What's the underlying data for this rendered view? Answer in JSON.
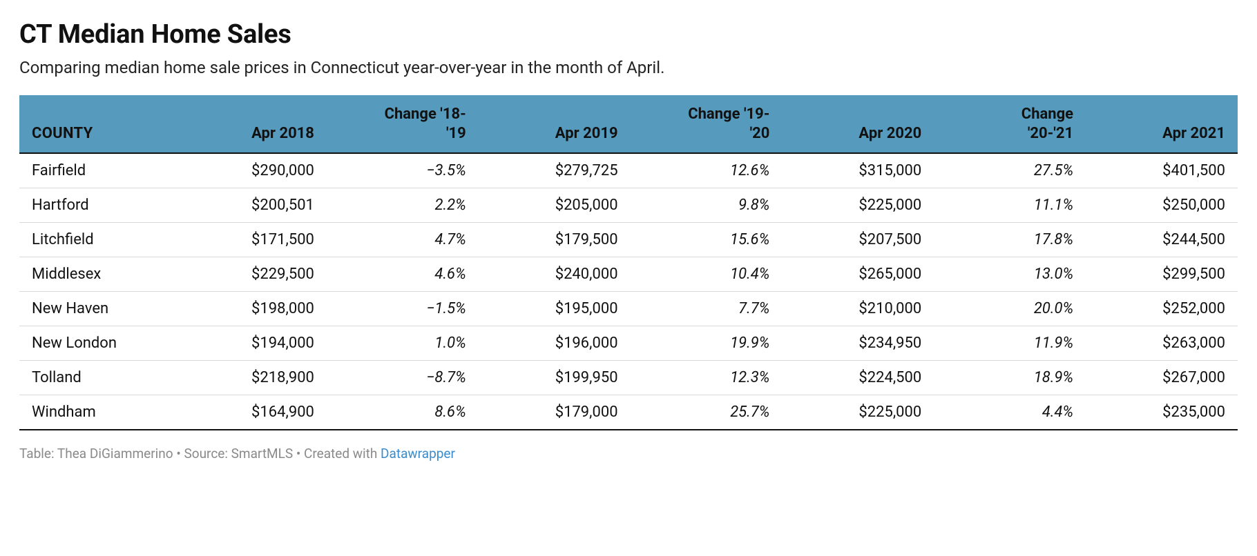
{
  "title": "CT Median Home Sales",
  "subtitle": "Comparing median home sale prices in Connecticut year-over-year in the month of April.",
  "colors": {
    "header_bg": "#569bbe",
    "text": "#111111",
    "row_border": "#d9d9d9",
    "bottom_border": "#111111",
    "footer_text": "#8a8a8a",
    "link": "#3b8ccc",
    "background": "#ffffff"
  },
  "font": {
    "title_size_pt": 28,
    "subtitle_size_pt": 18,
    "header_size_pt": 16,
    "cell_size_pt": 16,
    "footer_size_pt": 14,
    "family": "Roboto / Helvetica Neue"
  },
  "table": {
    "type": "table",
    "columns": [
      {
        "key": "county",
        "label": "COUNTY",
        "align": "left",
        "style": "plain"
      },
      {
        "key": "apr2018",
        "label": "Apr 2018",
        "align": "right",
        "style": "plain"
      },
      {
        "key": "chg1819",
        "label": "Change '18-'19",
        "align": "right",
        "style": "italic"
      },
      {
        "key": "apr2019",
        "label": "Apr 2019",
        "align": "right",
        "style": "plain"
      },
      {
        "key": "chg1920",
        "label": "Change '19-'20",
        "align": "right",
        "style": "italic"
      },
      {
        "key": "apr2020",
        "label": "Apr 2020",
        "align": "right",
        "style": "plain"
      },
      {
        "key": "chg2021",
        "label": "Change '20-'21",
        "align": "right",
        "style": "italic"
      },
      {
        "key": "apr2021",
        "label": "Apr 2021",
        "align": "right",
        "style": "plain"
      }
    ],
    "rows": [
      {
        "county": "Fairfield",
        "apr2018": "$290,000",
        "chg1819": "−3.5%",
        "apr2019": "$279,725",
        "chg1920": "12.6%",
        "apr2020": "$315,000",
        "chg2021": "27.5%",
        "apr2021": "$401,500"
      },
      {
        "county": "Hartford",
        "apr2018": "$200,501",
        "chg1819": "2.2%",
        "apr2019": "$205,000",
        "chg1920": "9.8%",
        "apr2020": "$225,000",
        "chg2021": "11.1%",
        "apr2021": "$250,000"
      },
      {
        "county": "Litchfield",
        "apr2018": "$171,500",
        "chg1819": "4.7%",
        "apr2019": "$179,500",
        "chg1920": "15.6%",
        "apr2020": "$207,500",
        "chg2021": "17.8%",
        "apr2021": "$244,500"
      },
      {
        "county": "Middlesex",
        "apr2018": "$229,500",
        "chg1819": "4.6%",
        "apr2019": "$240,000",
        "chg1920": "10.4%",
        "apr2020": "$265,000",
        "chg2021": "13.0%",
        "apr2021": "$299,500"
      },
      {
        "county": "New Haven",
        "apr2018": "$198,000",
        "chg1819": "−1.5%",
        "apr2019": "$195,000",
        "chg1920": "7.7%",
        "apr2020": "$210,000",
        "chg2021": "20.0%",
        "apr2021": "$252,000"
      },
      {
        "county": "New London",
        "apr2018": "$194,000",
        "chg1819": "1.0%",
        "apr2019": "$196,000",
        "chg1920": "19.9%",
        "apr2020": "$234,950",
        "chg2021": "11.9%",
        "apr2021": "$263,000"
      },
      {
        "county": "Tolland",
        "apr2018": "$218,900",
        "chg1819": "−8.7%",
        "apr2019": "$199,950",
        "chg1920": "12.3%",
        "apr2020": "$224,500",
        "chg2021": "18.9%",
        "apr2021": "$267,000"
      },
      {
        "county": "Windham",
        "apr2018": "$164,900",
        "chg1819": "8.6%",
        "apr2019": "$179,000",
        "chg1920": "25.7%",
        "apr2020": "$225,000",
        "chg2021": "4.4%",
        "apr2021": "$235,000"
      }
    ]
  },
  "footer": {
    "prefix": "Table: Thea DiGiammerino • Source: SmartMLS • Created with ",
    "link_text": "Datawrapper"
  }
}
